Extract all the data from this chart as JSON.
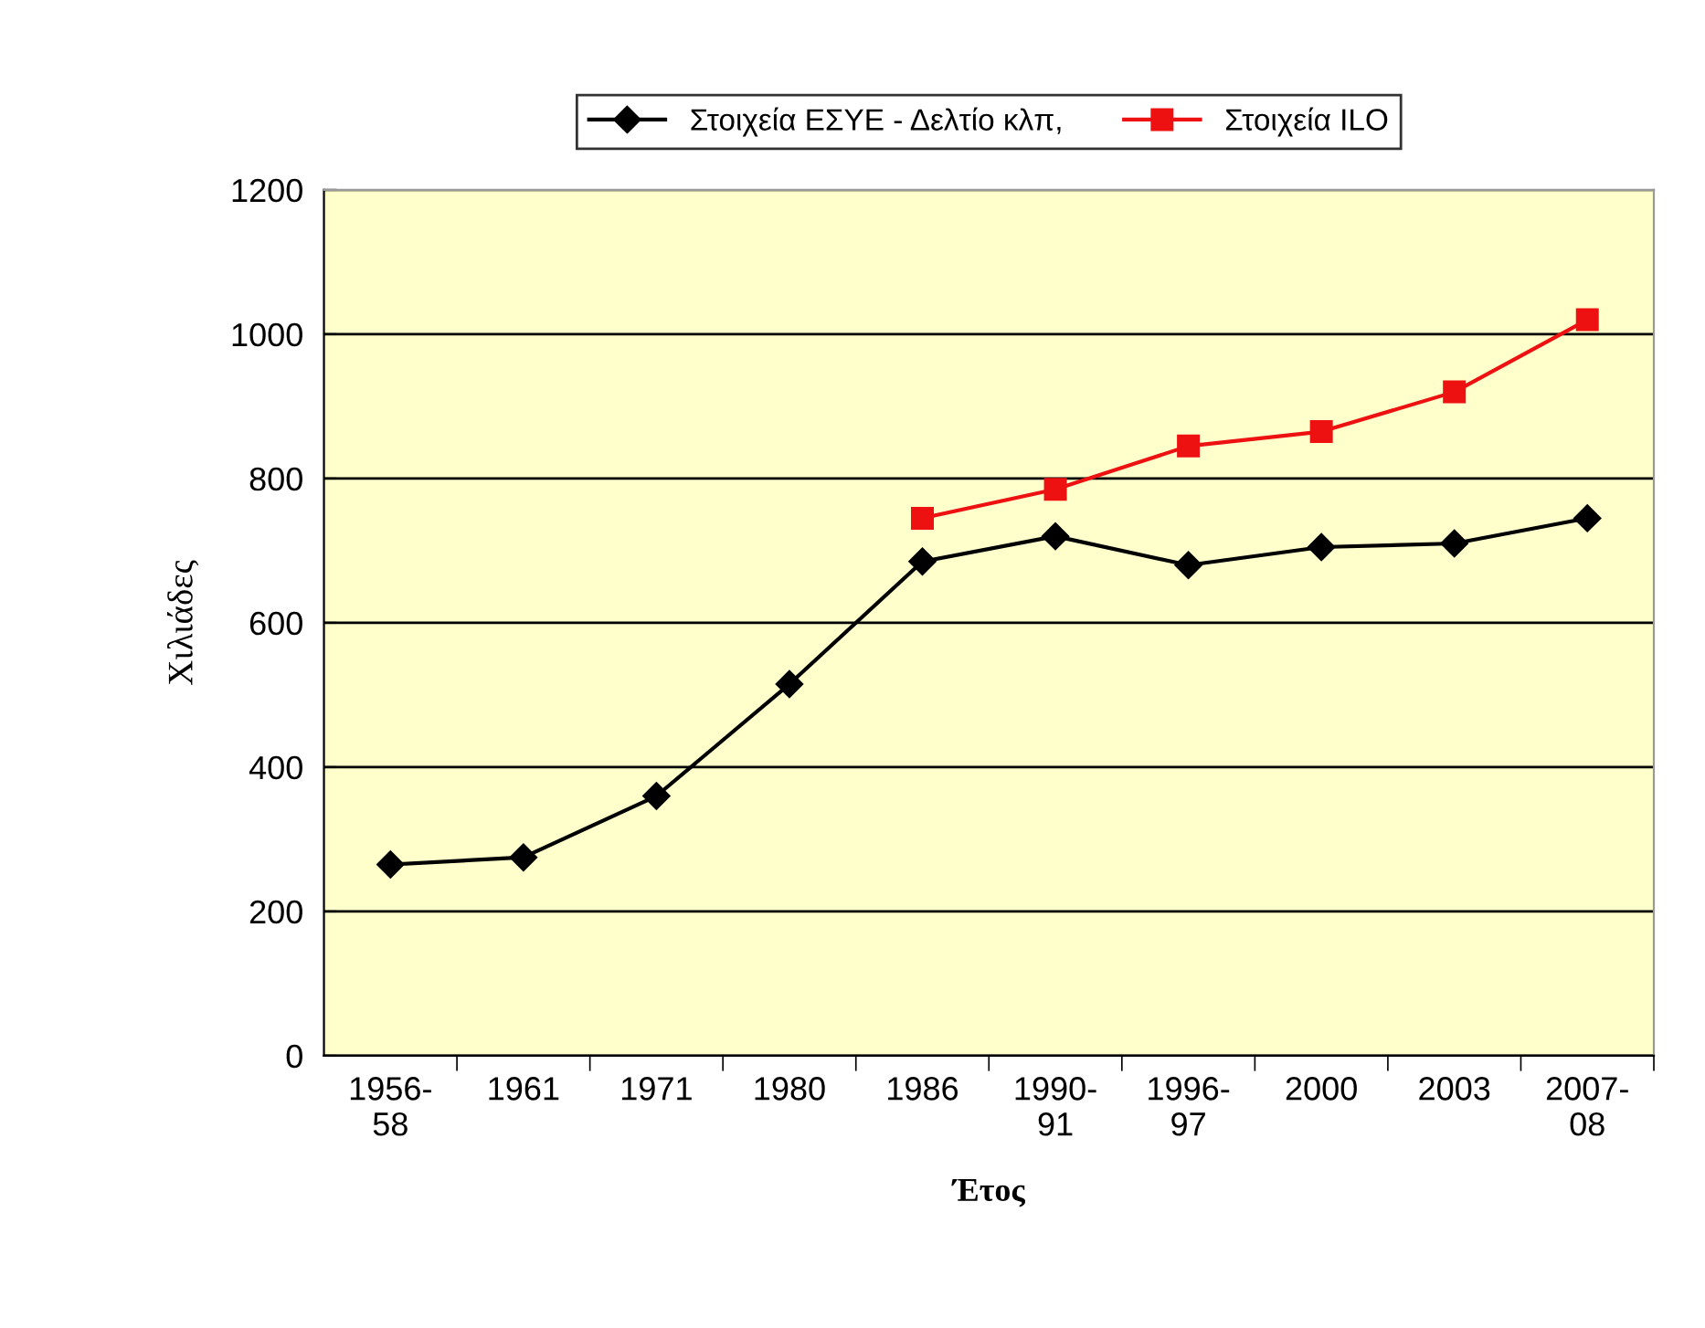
{
  "chart_data": {
    "type": "line",
    "xlabel": "Έτος",
    "ylabel": "Χιλιάδες",
    "categories": [
      "1956-\n58",
      "1961",
      "1971",
      "1980",
      "1986",
      "1990-\n91",
      "1996-\n97",
      "2000",
      "2003",
      "2007-\n08"
    ],
    "series": [
      {
        "name": "Στοιχεία ΕΣΥΕ - Δελτίο κλπ,",
        "color": "#000000",
        "marker": "diamond",
        "values": [
          265,
          275,
          360,
          515,
          685,
          720,
          680,
          705,
          710,
          745
        ]
      },
      {
        "name": "Στοιχεία ILO",
        "color": "#ee1111",
        "marker": "square",
        "values": [
          null,
          null,
          null,
          null,
          745,
          785,
          845,
          865,
          920,
          1020
        ]
      }
    ],
    "ylim": [
      0,
      1200
    ],
    "yticks": [
      0,
      200,
      400,
      600,
      800,
      1000,
      1200
    ],
    "grid": "y",
    "legend": "top",
    "line_style": "solid"
  }
}
